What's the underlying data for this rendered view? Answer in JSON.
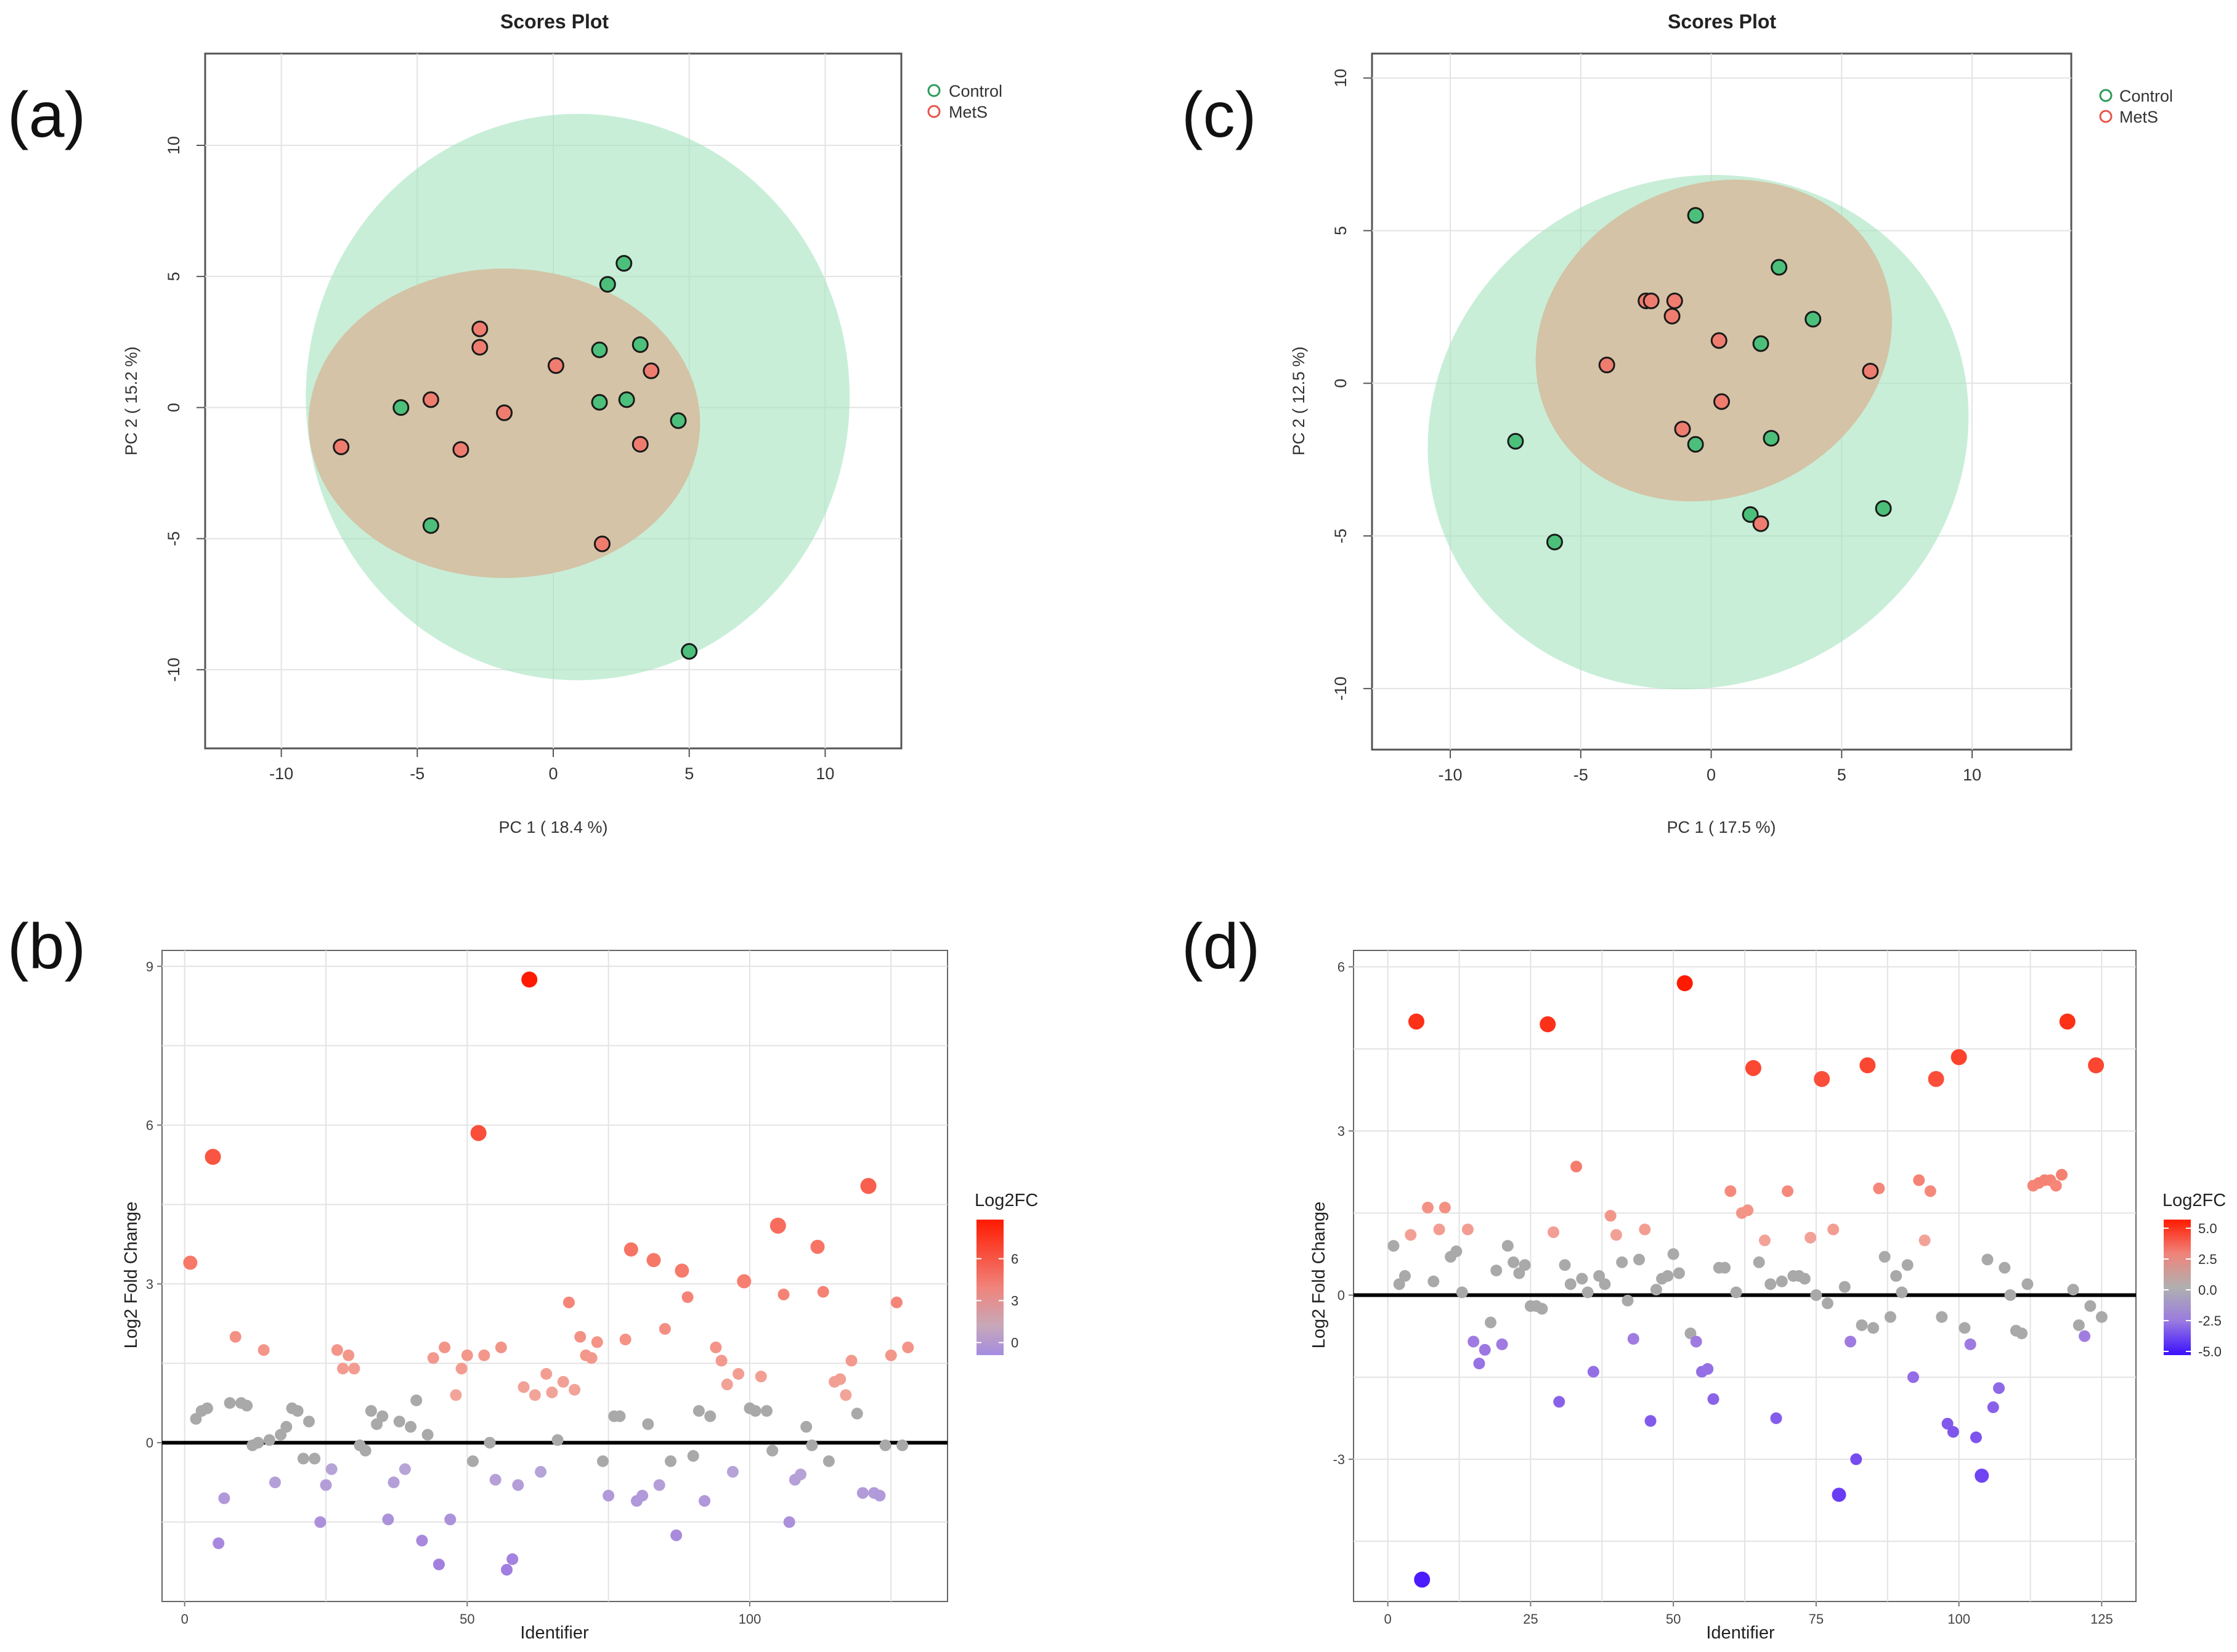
{
  "colors": {
    "control": "#2e9c5a",
    "control_fill": "#4cc07a",
    "mets": "#e8554d",
    "mets_fill": "#ef7d6f",
    "control_ellipse": "#a6e3c0",
    "mets_ellipse": "#f7b3b0",
    "overlap": "#d4c3a6",
    "grid": "#e3e3e3",
    "frame": "#555555",
    "baseline": "#000000",
    "fc_high": "#ff1a00",
    "fc_mid": "#b0b0b0",
    "fc_low": "#4b1aff"
  },
  "chart_data": [
    {
      "id": "a",
      "panel_label": "(a)",
      "type": "scatter",
      "title": "Scores Plot",
      "xlabel": "PC 1 ( 18.4 %)",
      "ylabel": "PC 2 ( 15.2 %)",
      "xlim": [
        -12.8,
        12.8
      ],
      "ylim": [
        -13,
        13.5
      ],
      "xticks": [
        -10,
        -5,
        0,
        5,
        10
      ],
      "yticks": [
        10,
        5,
        0,
        -5,
        -10
      ],
      "legend": {
        "position": "top-right",
        "entries": [
          "Control",
          "MetS"
        ]
      },
      "ellipses": [
        {
          "group": "MetS",
          "cx": -1.8,
          "cy": -0.6,
          "rx": 7.2,
          "ry": 5.9,
          "rotation": 0
        },
        {
          "group": "Control",
          "cx": 0.9,
          "cy": 0.4,
          "rx": 10.0,
          "ry": 10.8,
          "rotation": 0
        }
      ],
      "series": [
        {
          "name": "Control",
          "points": [
            [
              2.6,
              5.5
            ],
            [
              2.0,
              4.7
            ],
            [
              1.7,
              2.2
            ],
            [
              3.2,
              2.4
            ],
            [
              -5.6,
              0.0
            ],
            [
              1.7,
              0.2
            ],
            [
              2.7,
              0.3
            ],
            [
              4.6,
              -0.5
            ],
            [
              -4.5,
              -4.5
            ],
            [
              5.0,
              -9.3
            ]
          ]
        },
        {
          "name": "MetS",
          "points": [
            [
              -2.7,
              3.0
            ],
            [
              -2.7,
              2.3
            ],
            [
              0.1,
              1.6
            ],
            [
              3.6,
              1.4
            ],
            [
              -4.5,
              0.3
            ],
            [
              -1.8,
              -0.2
            ],
            [
              -7.8,
              -1.5
            ],
            [
              -3.4,
              -1.6
            ],
            [
              3.2,
              -1.4
            ],
            [
              1.8,
              -5.2
            ]
          ]
        }
      ]
    },
    {
      "id": "b",
      "panel_label": "(b)",
      "type": "scatter",
      "xlabel": "Identifier",
      "ylabel": "Log2 Fold Change",
      "xlim": [
        -4,
        135
      ],
      "ylim": [
        -3,
        9.3
      ],
      "xticks": [
        0,
        50,
        100
      ],
      "yticks": [
        9,
        6,
        3,
        0
      ],
      "legend": {
        "title": "Log2FC",
        "position": "right",
        "ticks": [
          6,
          3,
          0
        ],
        "range": [
          -0.9,
          8.8
        ]
      },
      "values": [
        3.4,
        0.45,
        0.6,
        0.65,
        5.4,
        -1.9,
        -1.05,
        0.75,
        2.0,
        0.75,
        0.7,
        -0.05,
        0.0,
        1.75,
        0.05,
        -0.75,
        0.15,
        0.3,
        0.65,
        0.6,
        -0.3,
        0.4,
        -0.3,
        -1.5,
        -0.8,
        -0.5,
        1.75,
        1.4,
        1.65,
        1.4,
        -0.05,
        -0.15,
        0.6,
        0.35,
        0.5,
        -1.45,
        -0.75,
        0.4,
        -0.5,
        0.3,
        0.8,
        -1.85,
        0.15,
        1.6,
        -2.3,
        1.8,
        -1.45,
        0.9,
        1.4,
        1.65,
        -0.35,
        5.85,
        1.65,
        0.0,
        -0.7,
        1.8,
        -2.4,
        -2.2,
        -0.8,
        1.05,
        8.75,
        0.9,
        -0.55,
        1.3,
        0.95,
        0.05,
        1.15,
        2.65,
        1.0,
        2.0,
        1.65,
        1.6,
        1.9,
        -0.35,
        -1.0,
        0.5,
        0.5,
        1.95,
        3.65,
        -1.1,
        -1.0,
        0.35,
        3.45,
        -0.8,
        2.15,
        -0.35,
        -1.75,
        3.25,
        2.75,
        -0.25,
        0.6,
        -1.1,
        0.5,
        1.8,
        1.55,
        1.1,
        -0.55,
        1.3,
        3.05,
        0.65,
        0.6,
        1.25,
        0.6,
        -0.15,
        4.1,
        2.8,
        -1.5,
        -0.7,
        -0.6,
        0.3,
        -0.05,
        3.7,
        2.85,
        -0.35,
        1.15,
        1.2,
        0.9,
        1.55,
        0.55,
        -0.95,
        4.85,
        -0.95,
        -1.0,
        -0.05,
        1.65,
        2.65,
        -0.05,
        1.8
      ]
    },
    {
      "id": "c",
      "panel_label": "(c)",
      "type": "scatter",
      "title": "Scores Plot",
      "xlabel": "PC 1 ( 17.5 %)",
      "ylabel": "PC 2 ( 12.5 %)",
      "xlim": [
        -13,
        13.8
      ],
      "ylim": [
        -12,
        10.8
      ],
      "xticks": [
        -10,
        -5,
        0,
        5,
        10
      ],
      "yticks": [
        10,
        5,
        0,
        -5,
        -10
      ],
      "legend": {
        "position": "top-right",
        "entries": [
          "Control",
          "MetS"
        ]
      },
      "ellipses": [
        {
          "group": "MetS",
          "cx": 0.1,
          "cy": 1.4,
          "rx": 7.0,
          "ry": 5.1,
          "rotation": -25
        },
        {
          "group": "Control",
          "cx": -0.5,
          "cy": -1.6,
          "rx": 10.5,
          "ry": 8.3,
          "rotation": -25
        }
      ],
      "series": [
        {
          "name": "Control",
          "points": [
            [
              -0.6,
              5.5
            ],
            [
              2.6,
              3.8
            ],
            [
              3.9,
              2.1
            ],
            [
              1.9,
              1.3
            ],
            [
              -7.5,
              -1.9
            ],
            [
              -0.6,
              -2.0
            ],
            [
              2.3,
              -1.8
            ],
            [
              -6.0,
              -5.2
            ],
            [
              1.5,
              -4.3
            ],
            [
              6.6,
              -4.1
            ]
          ]
        },
        {
          "name": "MetS",
          "points": [
            [
              -2.5,
              2.7
            ],
            [
              -2.3,
              2.7
            ],
            [
              -1.4,
              2.7
            ],
            [
              -1.5,
              2.2
            ],
            [
              0.3,
              1.4
            ],
            [
              -4.0,
              0.6
            ],
            [
              6.1,
              0.4
            ],
            [
              0.4,
              -0.6
            ],
            [
              -1.1,
              -1.5
            ],
            [
              1.9,
              -4.6
            ]
          ]
        }
      ]
    },
    {
      "id": "d",
      "panel_label": "(d)",
      "type": "scatter",
      "xlabel": "Identifier",
      "ylabel": "Log2 Fold Change",
      "xlim": [
        -6,
        131
      ],
      "ylim": [
        -5.6,
        6.3
      ],
      "xticks": [
        0,
        25,
        50,
        75,
        100,
        125
      ],
      "yticks": [
        6,
        3,
        0,
        -3
      ],
      "legend": {
        "title": "Log2FC",
        "position": "right",
        "ticks": [
          5.0,
          2.5,
          0.0,
          -2.5,
          -5.0
        ],
        "range": [
          -5.3,
          5.7
        ]
      },
      "values": [
        0.9,
        0.2,
        0.35,
        1.1,
        5.0,
        -5.2,
        1.6,
        0.25,
        1.2,
        1.6,
        0.7,
        0.8,
        0.05,
        1.2,
        -0.85,
        -1.25,
        -1.0,
        -0.5,
        0.45,
        -0.9,
        0.9,
        0.6,
        0.4,
        0.55,
        -0.2,
        -0.2,
        -0.25,
        4.95,
        1.15,
        -1.95,
        0.55,
        0.2,
        2.35,
        0.3,
        0.05,
        -1.4,
        0.35,
        0.2,
        1.45,
        1.1,
        0.6,
        -0.1,
        -0.8,
        0.65,
        1.2,
        -2.3,
        0.1,
        0.3,
        0.35,
        0.75,
        0.4,
        5.7,
        -0.7,
        -0.85,
        -1.4,
        -1.35,
        -1.9,
        0.5,
        0.5,
        1.9,
        0.05,
        1.5,
        1.55,
        4.15,
        0.6,
        1.0,
        0.2,
        -2.25,
        0.25,
        1.9,
        0.35,
        0.35,
        0.3,
        1.05,
        0.0,
        3.95,
        -0.15,
        1.2,
        -3.65,
        0.15,
        -0.85,
        -3.0,
        -0.55,
        4.2,
        -0.6,
        1.95,
        0.7,
        -0.4,
        0.35,
        0.05,
        0.55,
        -1.5,
        2.1,
        1.0,
        1.9,
        3.95,
        -0.4,
        -2.35,
        -2.5,
        4.35,
        -0.6,
        -0.9,
        -2.6,
        -3.3,
        0.65,
        -2.05,
        -1.7,
        0.5,
        0.0,
        -0.65,
        -0.7,
        0.2,
        2.0,
        2.05,
        2.1,
        2.1,
        2.0,
        2.2,
        5.0,
        0.1,
        -0.55,
        -0.75,
        -0.2,
        4.2,
        -0.4
      ]
    }
  ]
}
